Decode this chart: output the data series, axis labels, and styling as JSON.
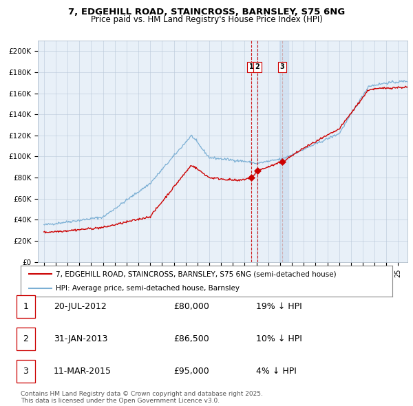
{
  "title": "7, EDGEHILL ROAD, STAINCROSS, BARNSLEY, S75 6NG",
  "subtitle": "Price paid vs. HM Land Registry's House Price Index (HPI)",
  "legend_line1": "7, EDGEHILL ROAD, STAINCROSS, BARNSLEY, S75 6NG (semi-detached house)",
  "legend_line2": "HPI: Average price, semi-detached house, Barnsley",
  "footer1": "Contains HM Land Registry data © Crown copyright and database right 2025.",
  "footer2": "This data is licensed under the Open Government Licence v3.0.",
  "transactions": [
    {
      "num": 1,
      "date": "20-JUL-2012",
      "price": 80000,
      "pct": "19%",
      "dir": "↓"
    },
    {
      "num": 2,
      "date": "31-JAN-2013",
      "price": 86500,
      "pct": "10%",
      "dir": "↓"
    },
    {
      "num": 3,
      "date": "11-MAR-2015",
      "price": 95000,
      "pct": "4%",
      "dir": "↓"
    }
  ],
  "sale_dates_decimal": [
    2012.55,
    2013.08,
    2015.19
  ],
  "sale_prices": [
    80000,
    86500,
    95000
  ],
  "vline1_date": 2012.55,
  "vline2_date": 2013.08,
  "vline3_date": 2015.19,
  "hpi_color": "#7bafd4",
  "property_color": "#cc0000",
  "plot_bg_color": "#e8f0f8",
  "ylim_max": 210,
  "xlim_start": 1994.5,
  "xlim_end": 2025.8
}
